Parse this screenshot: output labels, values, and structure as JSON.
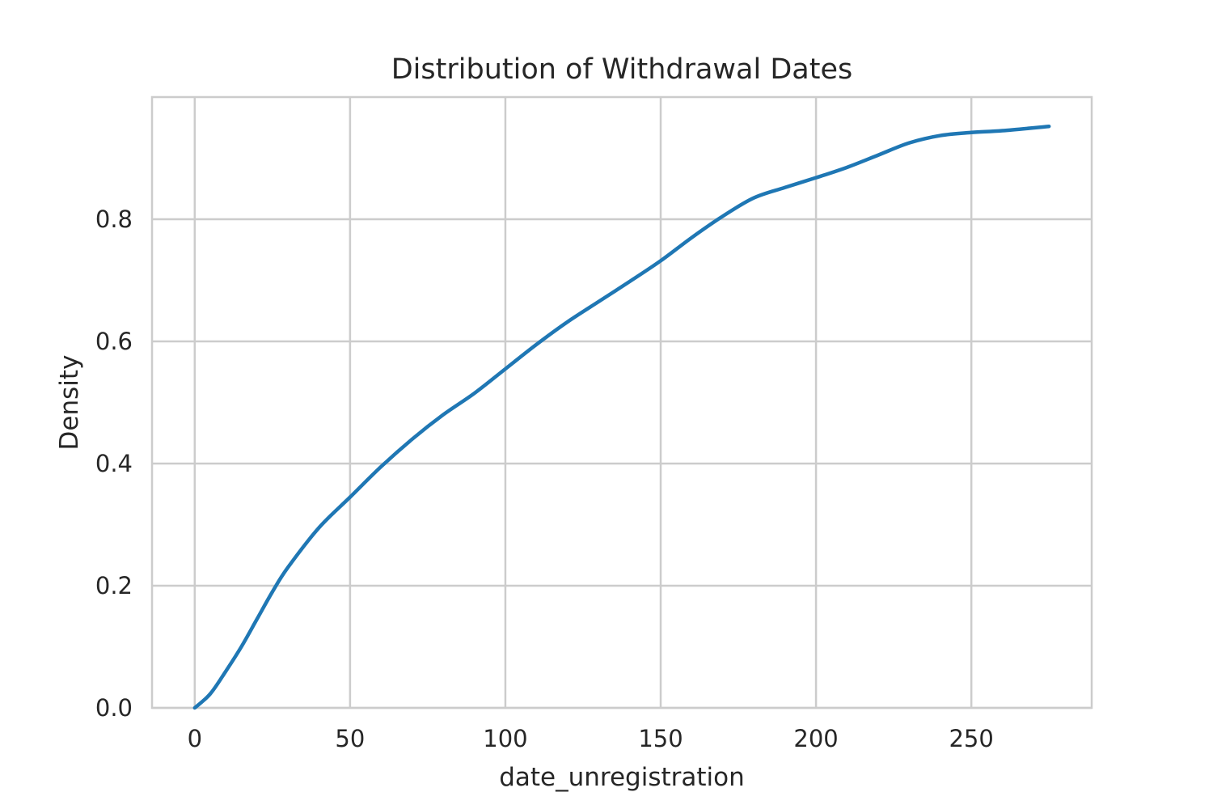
{
  "chart_data": {
    "type": "line",
    "title": "Distribution of Withdrawal Dates",
    "xlabel": "date_unregistration",
    "ylabel": "Density",
    "xlim": [
      -13.75,
      288.75
    ],
    "ylim": [
      0.0,
      1.0
    ],
    "grid": true,
    "x_ticks": [
      0,
      50,
      100,
      150,
      200,
      250
    ],
    "x_tick_labels": [
      "0",
      "50",
      "100",
      "150",
      "200",
      "250"
    ],
    "y_ticks": [
      0.0,
      0.2,
      0.4,
      0.6,
      0.8
    ],
    "y_tick_labels": [
      "0.0",
      "0.2",
      "0.4",
      "0.6",
      "0.8"
    ],
    "series": [
      {
        "name": "date_unregistration",
        "color": "#1f77b4",
        "x": [
          0,
          5,
          10,
          15,
          20,
          25,
          30,
          40,
          50,
          60,
          70,
          80,
          90,
          100,
          110,
          120,
          130,
          140,
          150,
          160,
          170,
          180,
          190,
          200,
          210,
          220,
          230,
          240,
          250,
          260,
          275
        ],
        "y": [
          0.0,
          0.023,
          0.06,
          0.1,
          0.145,
          0.19,
          0.23,
          0.295,
          0.345,
          0.395,
          0.44,
          0.48,
          0.515,
          0.555,
          0.595,
          0.632,
          0.665,
          0.698,
          0.732,
          0.77,
          0.805,
          0.835,
          0.852,
          0.868,
          0.885,
          0.905,
          0.925,
          0.937,
          0.942,
          0.945,
          0.952
        ]
      }
    ]
  }
}
